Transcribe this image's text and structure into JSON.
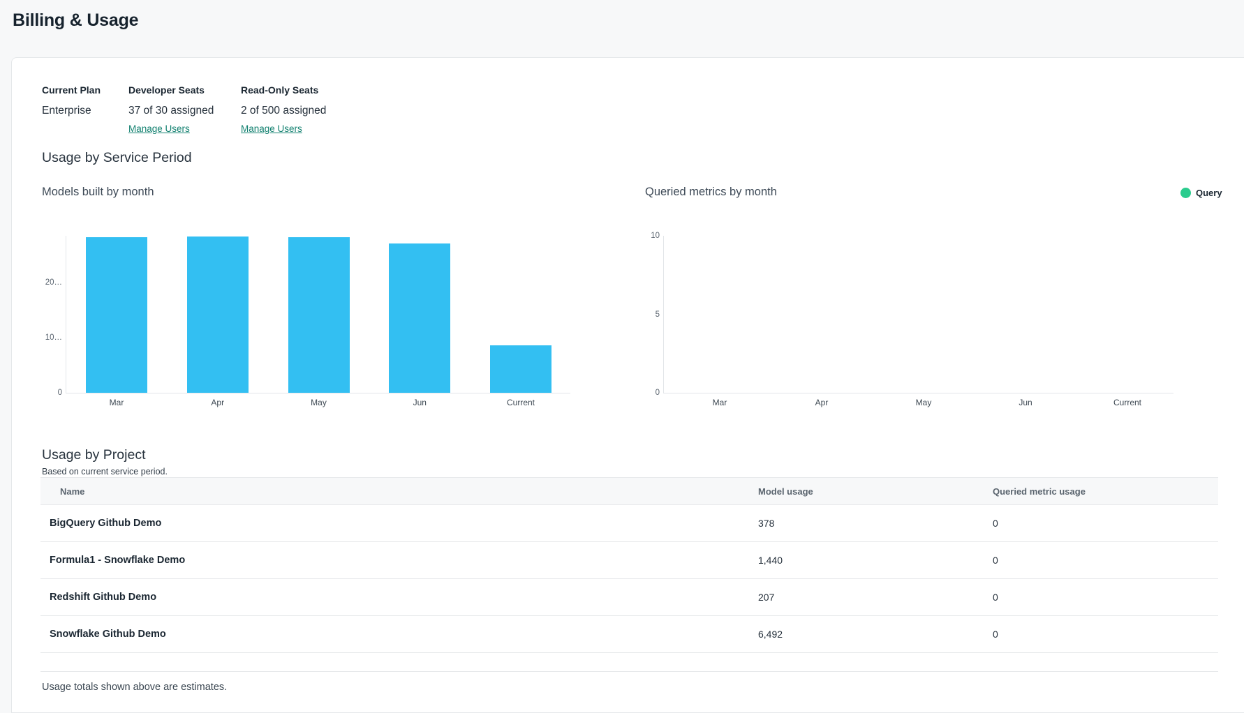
{
  "page": {
    "title": "Billing & Usage"
  },
  "plan": {
    "current_plan": {
      "label": "Current Plan",
      "value": "Enterprise"
    },
    "developer_seats": {
      "label": "Developer Seats",
      "value": "37 of 30 assigned",
      "link": "Manage Users"
    },
    "readonly_seats": {
      "label": "Read-Only Seats",
      "value": "2 of 500 assigned",
      "link": "Manage Users"
    }
  },
  "usage_by_service_period": {
    "heading": "Usage by Service Period"
  },
  "chart_data": [
    {
      "type": "bar",
      "title": "Models built by month",
      "categories": [
        "Mar",
        "Apr",
        "May",
        "Jun",
        "Current"
      ],
      "values": [
        28200,
        28300,
        28200,
        27100,
        8600
      ],
      "bar_color": "#33bff2",
      "y_ticks": [
        {
          "value": 0,
          "label": "0"
        },
        {
          "value": 10000,
          "label": "10…"
        },
        {
          "value": 20000,
          "label": "20…"
        }
      ],
      "ylim": [
        0,
        28700
      ],
      "grid": false,
      "legend_position": "none",
      "xlabel": "",
      "ylabel": ""
    },
    {
      "type": "bar",
      "title": "Queried metrics by month",
      "categories": [
        "Mar",
        "Apr",
        "May",
        "Jun",
        "Current"
      ],
      "series": [
        {
          "name": "Query",
          "values": [
            0,
            0,
            0,
            0,
            0
          ]
        }
      ],
      "values": [
        0,
        0,
        0,
        0,
        0
      ],
      "bar_color": "#2bcc8e",
      "legend": {
        "label": "Query",
        "color": "#2bcc8e",
        "position": "top-right"
      },
      "y_ticks": [
        {
          "value": 0,
          "label": "0"
        },
        {
          "value": 5,
          "label": "5"
        },
        {
          "value": 10,
          "label": "10"
        }
      ],
      "ylim": [
        0,
        10
      ],
      "grid": false,
      "xlabel": "",
      "ylabel": ""
    }
  ],
  "usage_by_project": {
    "heading": "Usage by Project",
    "subtext": "Based on current service period.",
    "table": {
      "columns": [
        "Name",
        "Model usage",
        "Queried metric usage"
      ],
      "rows": [
        {
          "name": "BigQuery Github Demo",
          "model_usage": "378",
          "queried_metric_usage": "0"
        },
        {
          "name": "Formula1 - Snowflake Demo",
          "model_usage": "1,440",
          "queried_metric_usage": "0"
        },
        {
          "name": "Redshift Github Demo",
          "model_usage": "207",
          "queried_metric_usage": "0"
        },
        {
          "name": "Snowflake Github Demo",
          "model_usage": "6,492",
          "queried_metric_usage": "0"
        }
      ]
    },
    "footnote": "Usage totals shown above are estimates."
  },
  "colors": {
    "bar_blue": "#33bff2",
    "legend_green": "#2bcc8e",
    "link_teal": "#11806f",
    "page_background": "#f7f8f9"
  }
}
